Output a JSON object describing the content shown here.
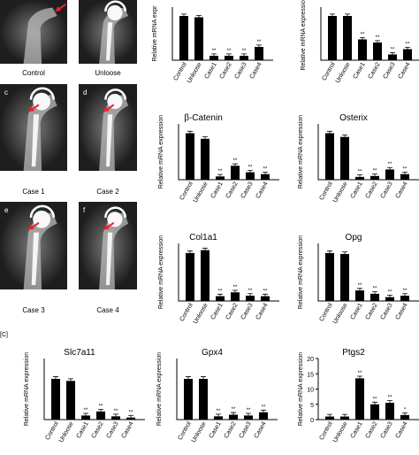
{
  "xray_panels": [
    {
      "letter": "",
      "label": "Control"
    },
    {
      "letter": "",
      "label": "Unloose"
    },
    {
      "letter": "c",
      "label": "Case 1"
    },
    {
      "letter": "d",
      "label": "Case 2"
    },
    {
      "letter": "e",
      "label": "Case 3"
    },
    {
      "letter": "f",
      "label": "Case 4"
    }
  ],
  "panel_c_label": "[C]",
  "chart_data": [
    {
      "type": "bar",
      "title": "",
      "ylabel": "Relative mRNA expr",
      "categories": [
        "Control",
        "Unloose",
        "Case1",
        "Case2",
        "Case3",
        "Case4"
      ],
      "values": [
        1.0,
        0.97,
        0.1,
        0.1,
        0.1,
        0.3
      ],
      "significance": [
        "",
        "",
        "**",
        "**",
        "**",
        "**"
      ],
      "ylim": [
        0,
        1.2
      ],
      "yticks": [],
      "bar_color": "#000000"
    },
    {
      "type": "bar",
      "title": "",
      "ylabel": "Relative mRNA expression",
      "categories": [
        "Control",
        "Unloose",
        "Case1",
        "Case2",
        "Case3",
        "Case4"
      ],
      "values": [
        1.0,
        1.0,
        0.47,
        0.4,
        0.13,
        0.25
      ],
      "significance": [
        "",
        "",
        "**",
        "**",
        "**",
        "**"
      ],
      "ylim": [
        0,
        1.2
      ],
      "yticks": [],
      "bar_color": "#000000"
    },
    {
      "type": "bar",
      "title": "β-Catenin",
      "ylabel": "Relative mRNA expression",
      "categories": [
        "Control",
        "Unloose",
        "Case1",
        "Case2",
        "Case3",
        "Case4"
      ],
      "values": [
        1.0,
        0.88,
        0.07,
        0.3,
        0.16,
        0.12
      ],
      "significance": [
        "",
        "",
        "**",
        "**",
        "**",
        "**"
      ],
      "ylim": [
        0,
        1.2
      ],
      "yticks": [],
      "bar_color": "#000000"
    },
    {
      "type": "bar",
      "title": "Osterix",
      "ylabel": "Relative mRNA expression",
      "categories": [
        "Control",
        "Unloose",
        "Case1",
        "Case2",
        "Case3",
        "Case4"
      ],
      "values": [
        1.0,
        0.92,
        0.06,
        0.08,
        0.22,
        0.12
      ],
      "significance": [
        "",
        "",
        "**",
        "**",
        "**",
        "**"
      ],
      "ylim": [
        0,
        1.2
      ],
      "yticks": [],
      "bar_color": "#000000"
    },
    {
      "type": "bar",
      "title": "Col1a1",
      "ylabel": "Relative mRNA expression",
      "categories": [
        "Control",
        "Unloose",
        "Case1",
        "Case2",
        "Case3",
        "Case4"
      ],
      "values": [
        1.0,
        1.06,
        0.1,
        0.18,
        0.11,
        0.1
      ],
      "significance": [
        "",
        "",
        "**",
        "**",
        "**",
        "**"
      ],
      "ylim": [
        0,
        1.2
      ],
      "yticks": [],
      "bar_color": "#000000"
    },
    {
      "type": "bar",
      "title": "Opg",
      "ylabel": "Relative mRNA expression",
      "categories": [
        "Control",
        "Unloose",
        "Case1",
        "Case2",
        "Case3",
        "Case4"
      ],
      "values": [
        1.0,
        0.98,
        0.22,
        0.15,
        0.08,
        0.11
      ],
      "significance": [
        "",
        "",
        "**",
        "**",
        "**",
        "**"
      ],
      "ylim": [
        0,
        1.2
      ],
      "yticks": [],
      "bar_color": "#000000"
    },
    {
      "type": "bar",
      "title": "Slc7a11",
      "ylabel": "Relative mRNA expression",
      "categories": [
        "Control",
        "Unloose",
        "Case1",
        "Case2",
        "Case3",
        "Case4"
      ],
      "values": [
        1.0,
        0.95,
        0.1,
        0.2,
        0.08,
        0.05
      ],
      "significance": [
        "",
        "",
        "**",
        "**",
        "**",
        "**"
      ],
      "ylim": [
        0,
        1.5
      ],
      "yticks": [],
      "bar_color": "#000000"
    },
    {
      "type": "bar",
      "title": "Gpx4",
      "ylabel": "Relative mRNA expression",
      "categories": [
        "Control",
        "Unloose",
        "Case1",
        "Case2",
        "Case3",
        "Case4"
      ],
      "values": [
        1.0,
        1.0,
        0.08,
        0.12,
        0.1,
        0.18
      ],
      "significance": [
        "",
        "",
        "**",
        "**",
        "**",
        "**"
      ],
      "ylim": [
        0,
        1.5
      ],
      "yticks": [],
      "bar_color": "#000000"
    },
    {
      "type": "bar",
      "title": "Ptgs2",
      "ylabel": "Relative mRNA expression",
      "categories": [
        "Control",
        "Unloose",
        "Case1",
        "Case2",
        "Case3",
        "Case4"
      ],
      "values": [
        1.0,
        1.0,
        13.5,
        5.0,
        5.5,
        1.5
      ],
      "significance": [
        "",
        "",
        "**",
        "**",
        "**",
        "*"
      ],
      "ylim": [
        0,
        20
      ],
      "yticks": [
        0,
        5,
        10,
        15,
        20
      ],
      "bar_color": "#000000"
    }
  ]
}
